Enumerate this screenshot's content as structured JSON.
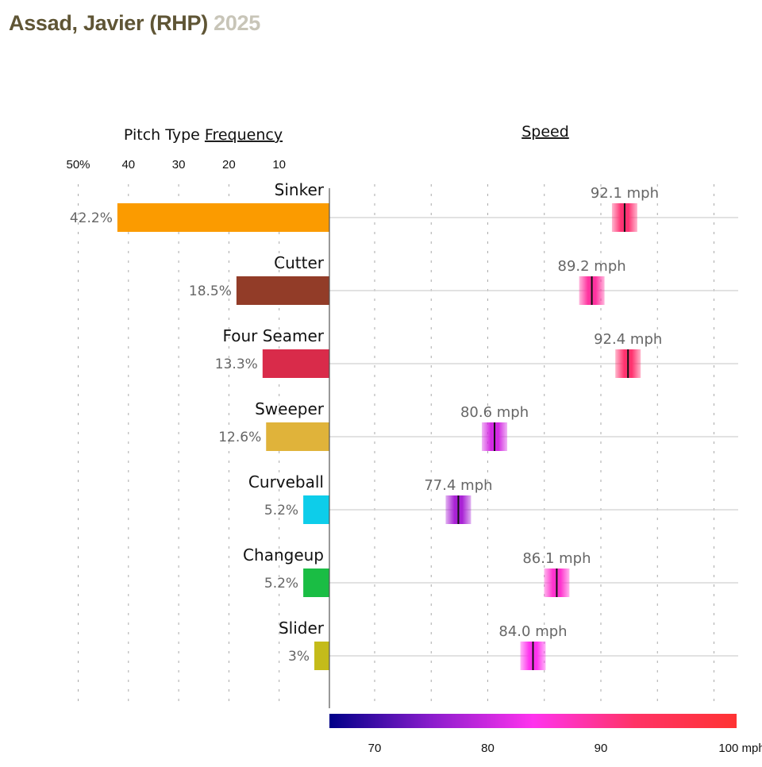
{
  "header": {
    "player": "Assad, Javier (RHP)",
    "season": "2025"
  },
  "chart_data": {
    "type": "bar",
    "title": "Assad, Javier (RHP) 2025",
    "panels": {
      "frequency": {
        "title_prefix": "Pitch Type ",
        "title_link": "Frequency",
        "xlim": [
          0,
          50
        ],
        "ticks": [
          50,
          40,
          30,
          20,
          10
        ],
        "tick_labels": [
          "50%",
          "40",
          "30",
          "20",
          "10"
        ],
        "grid": "dotted-vertical",
        "direction": "right-to-left"
      },
      "speed": {
        "title": "Speed",
        "xlim": [
          66,
          102
        ],
        "grid_values": [
          70,
          75,
          80,
          85,
          90,
          95,
          100
        ],
        "colorbar_ticks": [
          70,
          80,
          90
        ],
        "colorbar_tick_labels": [
          "70",
          "80",
          "90",
          "100 mph"
        ],
        "colorbar_last_tick": 100,
        "colorbar_stops": [
          "#000088",
          "#8a1ccc",
          "#ff33ee",
          "#ff3366",
          "#ff3333"
        ]
      }
    },
    "categories": [
      "Sinker",
      "Cutter",
      "Four Seamer",
      "Sweeper",
      "Curveball",
      "Changeup",
      "Slider"
    ],
    "series": [
      {
        "name": "Frequency (%)",
        "values": [
          42.2,
          18.5,
          13.3,
          12.6,
          5.2,
          5.2,
          3
        ],
        "labels": [
          "42.2%",
          "18.5%",
          "13.3%",
          "12.6%",
          "5.2%",
          "5.2%",
          "3%"
        ],
        "colors": [
          "#fb9b00",
          "#923c28",
          "#d92b4a",
          "#e0b33a",
          "#0dcdea",
          "#1abd44",
          "#c4bb1a"
        ]
      },
      {
        "name": "Average Speed (mph)",
        "values": [
          92.1,
          89.2,
          92.4,
          80.6,
          77.4,
          86.1,
          84.0
        ],
        "labels": [
          "92.1 mph",
          "89.2 mph",
          "92.4 mph",
          "80.6 mph",
          "77.4 mph",
          "86.1 mph",
          "84.0 mph"
        ]
      }
    ]
  }
}
